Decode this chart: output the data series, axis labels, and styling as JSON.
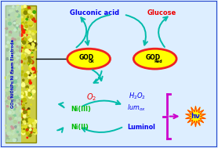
{
  "bg_color": "#ddeeff",
  "border_color": "#2244cc",
  "title_gluconic": "Gluconic acid",
  "title_glucose": "Glucose",
  "title_gluconic_color": "#0000ee",
  "title_glucose_color": "#ee0000",
  "ellipse_fill": "#ffff00",
  "ellipse_edge": "#ee2222",
  "o2_color": "#ee0000",
  "h2o2_color": "#0000ee",
  "lumox_color": "#0000ee",
  "luminol_color": "#0000ee",
  "ni3_color": "#00bb00",
  "ni2_color": "#00bb00",
  "hv_fill": "#ffff00",
  "hv_color": "#0000ee",
  "hv_star_edge": "#ff4400",
  "bracket_color": "#cc00cc",
  "arrow_color": "#00bbaa",
  "electrode_text": "GOx/NiONPs/Ni Foam Electrode",
  "electrode_text_color": "#0000cc",
  "foam_bg": "#ccdd44",
  "label_bg": "#aaddee"
}
